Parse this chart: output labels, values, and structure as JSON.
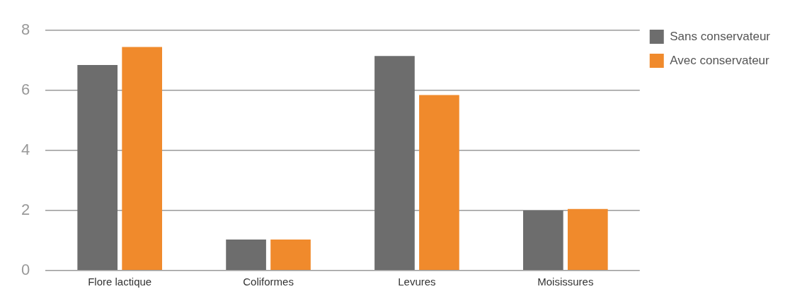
{
  "chart_data": {
    "type": "bar",
    "categories": [
      "Flore lactique",
      "Coliformes",
      "Levures",
      "Moisissures"
    ],
    "series": [
      {
        "name": "Sans conservateur",
        "color": "#6d6d6d",
        "values": [
          6.85,
          1.03,
          7.15,
          2.0
        ]
      },
      {
        "name": "Avec conservateur",
        "color": "#f08a2c",
        "values": [
          7.45,
          1.03,
          5.85,
          2.05
        ]
      }
    ],
    "ylim": [
      0,
      8
    ],
    "yticks": [
      0,
      2,
      4,
      6,
      8
    ],
    "grid": "y",
    "legend": "top right"
  }
}
